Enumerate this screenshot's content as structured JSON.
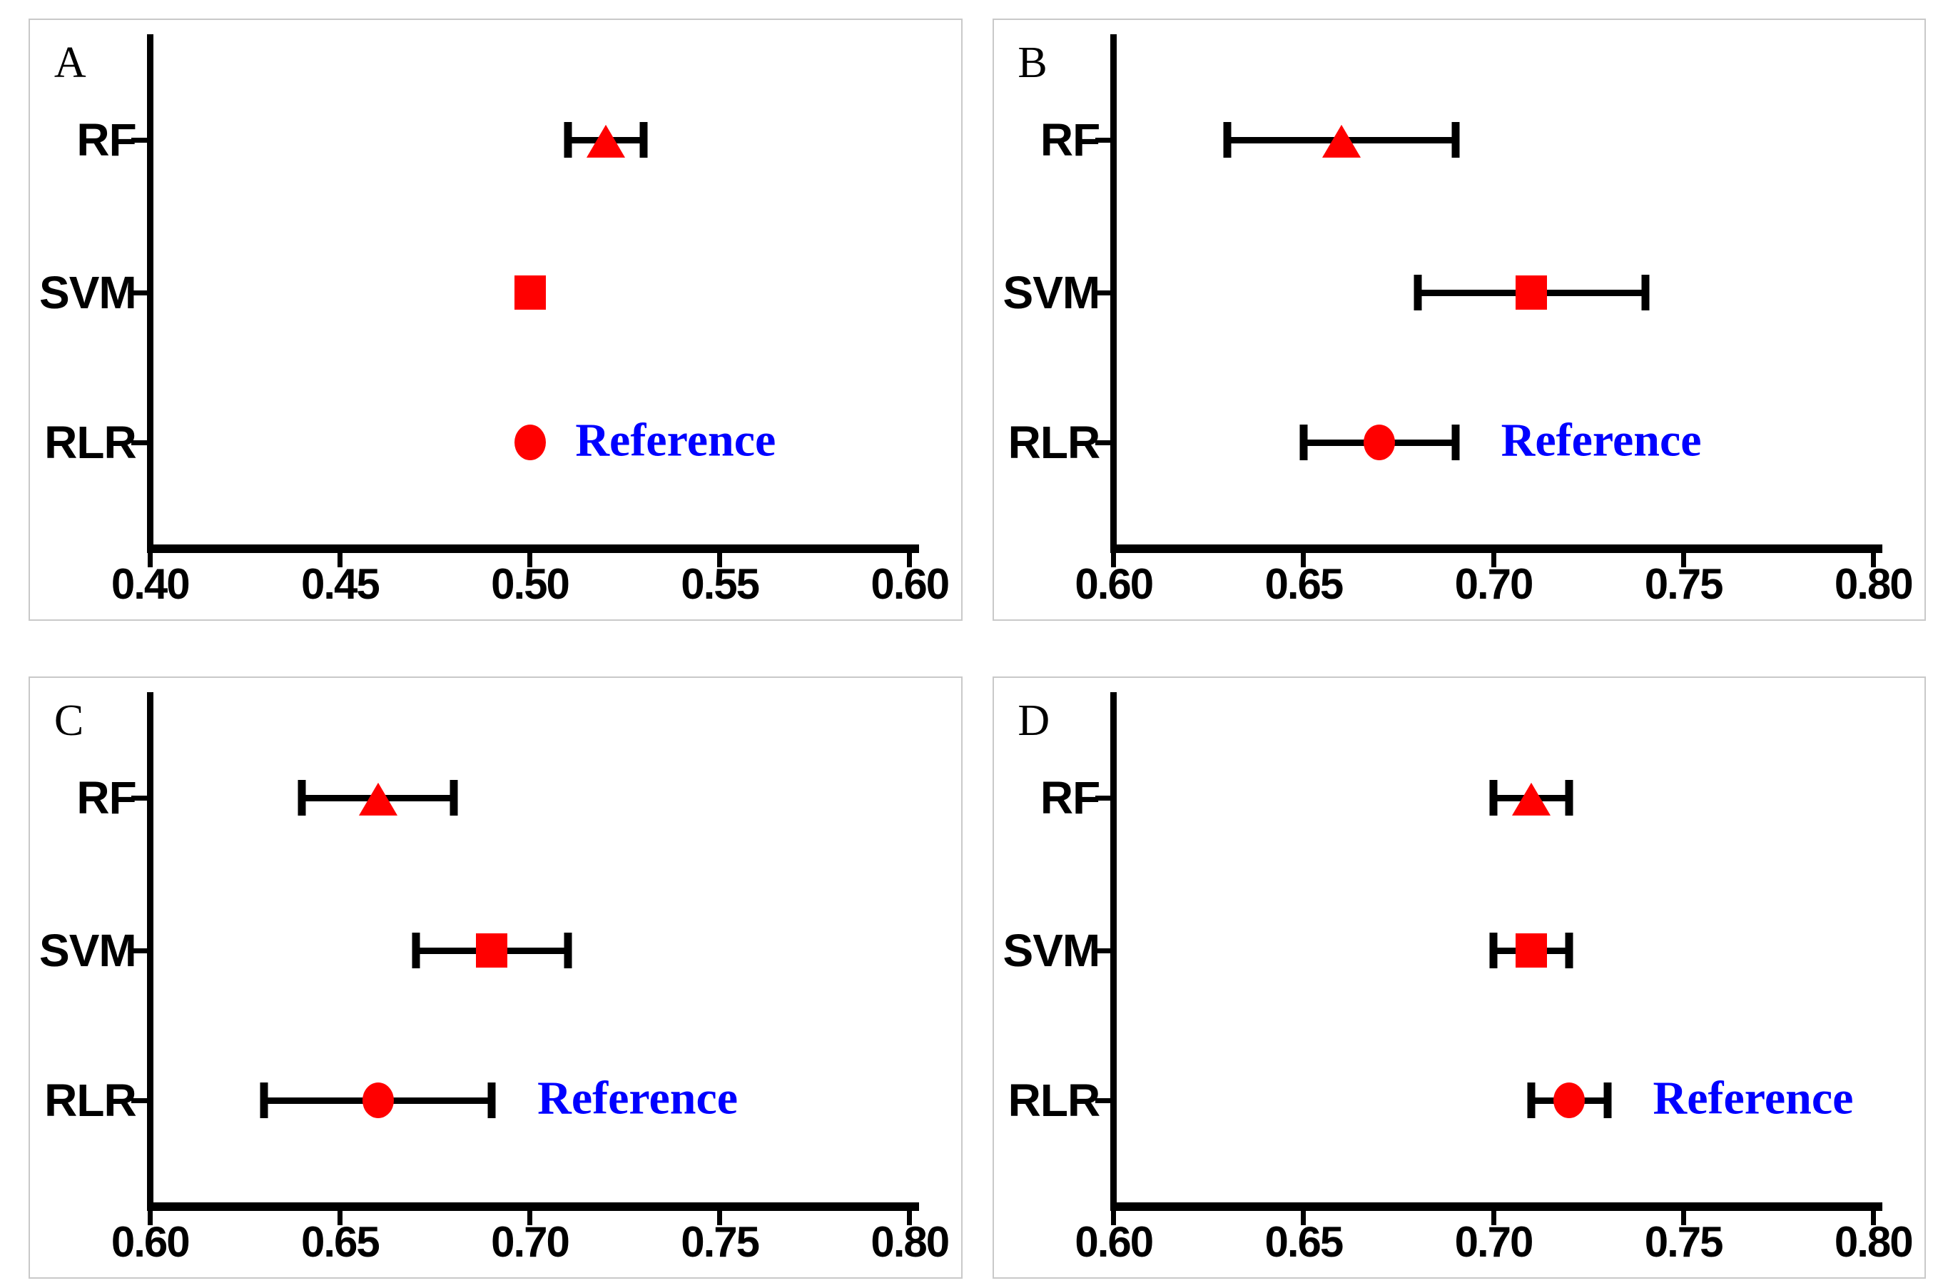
{
  "figure": {
    "background_color": "#ffffff",
    "panel_border_color": "#c9c9c9",
    "axis_color": "#000000",
    "marker_color": "#ff0000",
    "annotation_color": "#0000ff",
    "text_color": "#000000"
  },
  "chart_data": {
    "type": "scatter",
    "layout": "2x2-grid-of-horizontal-dot-plots-with-error-bars",
    "grid": false,
    "legend_position": "none",
    "panels": [
      {
        "letter": "A",
        "xlim": [
          0.4,
          0.6
        ],
        "xticks": [
          "0.40",
          "0.45",
          "0.50",
          "0.55",
          "0.60"
        ],
        "rows": [
          {
            "label": "RF",
            "marker": "triangle",
            "value": 0.52,
            "ci": [
              0.51,
              0.53
            ]
          },
          {
            "label": "SVM",
            "marker": "square",
            "value": 0.5,
            "ci": null
          },
          {
            "label": "RLR",
            "marker": "circle",
            "value": 0.5,
            "ci": null,
            "annotation": "Reference"
          }
        ]
      },
      {
        "letter": "B",
        "xlim": [
          0.6,
          0.8
        ],
        "xticks": [
          "0.60",
          "0.65",
          "0.70",
          "0.75",
          "0.80"
        ],
        "rows": [
          {
            "label": "RF",
            "marker": "triangle",
            "value": 0.66,
            "ci": [
              0.63,
              0.69
            ]
          },
          {
            "label": "SVM",
            "marker": "square",
            "value": 0.71,
            "ci": [
              0.68,
              0.74
            ]
          },
          {
            "label": "RLR",
            "marker": "circle",
            "value": 0.67,
            "ci": [
              0.65,
              0.69
            ],
            "annotation": "Reference"
          }
        ]
      },
      {
        "letter": "C",
        "xlim": [
          0.6,
          0.8
        ],
        "xticks": [
          "0.60",
          "0.65",
          "0.70",
          "0.75",
          "0.80"
        ],
        "rows": [
          {
            "label": "RF",
            "marker": "triangle",
            "value": 0.66,
            "ci": [
              0.64,
              0.68
            ]
          },
          {
            "label": "SVM",
            "marker": "square",
            "value": 0.69,
            "ci": [
              0.67,
              0.71
            ]
          },
          {
            "label": "RLR",
            "marker": "circle",
            "value": 0.66,
            "ci": [
              0.63,
              0.69
            ],
            "annotation": "Reference"
          }
        ]
      },
      {
        "letter": "D",
        "xlim": [
          0.6,
          0.8
        ],
        "xticks": [
          "0.60",
          "0.65",
          "0.70",
          "0.75",
          "0.80"
        ],
        "rows": [
          {
            "label": "RF",
            "marker": "triangle",
            "value": 0.71,
            "ci": [
              0.7,
              0.72
            ]
          },
          {
            "label": "SVM",
            "marker": "square",
            "value": 0.71,
            "ci": [
              0.7,
              0.72
            ]
          },
          {
            "label": "RLR",
            "marker": "circle",
            "value": 0.72,
            "ci": [
              0.71,
              0.73
            ],
            "annotation": "Reference"
          }
        ]
      }
    ]
  }
}
